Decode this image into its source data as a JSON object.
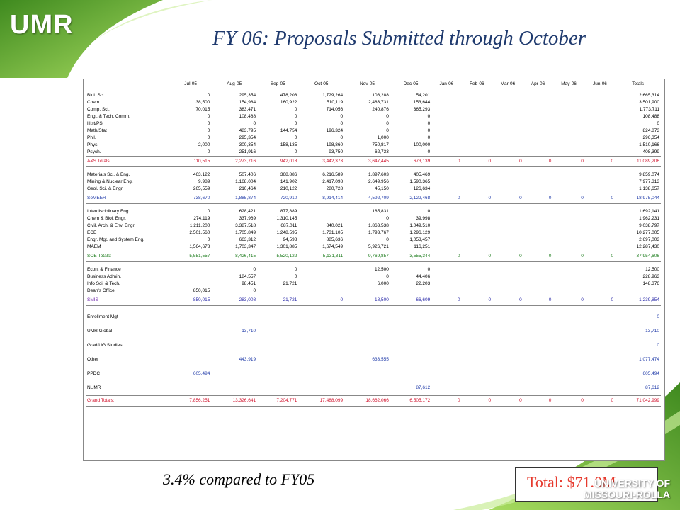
{
  "header": {
    "logo": "UMR",
    "title": "FY 06: Proposals Submitted through October"
  },
  "table": {
    "columns": [
      "",
      "Jul-05",
      "Aug-05",
      "Sep-05",
      "Oct-05",
      "Nov-05",
      "Dec-05",
      "Jan-06",
      "Feb-06",
      "Mar-06",
      "Apr-06",
      "May-06",
      "Jun-06",
      "Totals"
    ],
    "sections": [
      {
        "rows": [
          {
            "label": "Biol. Sci.",
            "values": [
              "0",
              "295,354",
              "478,208",
              "1,729,264",
              "108,288",
              "54,201",
              "",
              "",
              "",
              "",
              "",
              "",
              "2,665,314"
            ]
          },
          {
            "label": "Chem.",
            "values": [
              "38,500",
              "154,984",
              "160,922",
              "510,119",
              "2,483,731",
              "153,644",
              "",
              "",
              "",
              "",
              "",
              "",
              "3,501,900"
            ]
          },
          {
            "label": "Comp. Sci.",
            "values": [
              "70,015",
              "383,471",
              "0",
              "714,056",
              "240,876",
              "365,293",
              "",
              "",
              "",
              "",
              "",
              "",
              "1,773,711"
            ]
          },
          {
            "label": "Engl. & Tech. Comm.",
            "values": [
              "0",
              "108,488",
              "0",
              "0",
              "0",
              "0",
              "",
              "",
              "",
              "",
              "",
              "",
              "108,488"
            ]
          },
          {
            "label": "Hist/PS",
            "values": [
              "0",
              "0",
              "0",
              "0",
              "0",
              "0",
              "",
              "",
              "",
              "",
              "",
              "",
              "0"
            ]
          },
          {
            "label": "Math/Stat",
            "values": [
              "0",
              "483,795",
              "144,754",
              "196,324",
              "0",
              "0",
              "",
              "",
              "",
              "",
              "",
              "",
              "824,873"
            ]
          },
          {
            "label": "Phil.",
            "values": [
              "0",
              "295,354",
              "0",
              "0",
              "1,000",
              "0",
              "",
              "",
              "",
              "",
              "",
              "",
              "296,354"
            ]
          },
          {
            "label": "Phys.",
            "values": [
              "2,000",
              "300,354",
              "158,135",
              "198,860",
              "750,817",
              "100,000",
              "",
              "",
              "",
              "",
              "",
              "",
              "1,510,166"
            ]
          },
          {
            "label": "Psych.",
            "values": [
              "0",
              "251,916",
              "0",
              "93,750",
              "62,733",
              "0",
              "",
              "",
              "",
              "",
              "",
              "",
              "408,399"
            ]
          }
        ],
        "total": {
          "label": "A&S Totals:",
          "values": [
            "110,515",
            "2,273,716",
            "942,018",
            "3,442,373",
            "3,647,445",
            "673,139",
            "0",
            "0",
            "0",
            "0",
            "0",
            "0",
            "11,089,206"
          ]
        }
      },
      {
        "rows": [
          {
            "label": "Materials Sci. & Eng.",
            "values": [
              "463,122",
              "507,406",
              "368,886",
              "6,216,589",
              "1,897,603",
              "405,469",
              "",
              "",
              "",
              "",
              "",
              "",
              "9,859,074"
            ]
          },
          {
            "label": "Mining & Nuclear Eng.",
            "values": [
              "9,989",
              "1,168,004",
              "141,902",
              "2,417,098",
              "2,649,956",
              "1,590,365",
              "",
              "",
              "",
              "",
              "",
              "",
              "7,977,313"
            ]
          },
          {
            "label": "Geol. Sci. & Engr.",
            "values": [
              "265,559",
              "210,464",
              "210,122",
              "280,728",
              "45,150",
              "126,634",
              "",
              "",
              "",
              "",
              "",
              "",
              "1,138,657"
            ]
          }
        ],
        "total": {
          "label": "SoMEER",
          "values": [
            "738,670",
            "1,885,874",
            "720,910",
            "8,914,414",
            "4,592,709",
            "2,122,468",
            "0",
            "0",
            "0",
            "0",
            "0",
            "0",
            "18,975,044"
          ]
        }
      },
      {
        "rows": [
          {
            "label": "Interdisciplinary Eng",
            "values": [
              "0",
              "628,421",
              "877,889",
              "",
              "185,831",
              "0",
              "",
              "",
              "",
              "",
              "",
              "",
              "1,692,141"
            ]
          },
          {
            "label": "Chem & Biol. Engr.",
            "values": [
              "274,119",
              "337,969",
              "1,310,145",
              "",
              "0",
              "39,998",
              "",
              "",
              "",
              "",
              "",
              "",
              "1,962,231"
            ]
          },
          {
            "label": "Civil, Arch. & Env. Engr.",
            "values": [
              "1,211,200",
              "3,387,518",
              "687,011",
              "840,021",
              "1,863,538",
              "1,049,510",
              "",
              "",
              "",
              "",
              "",
              "",
              "9,038,797"
            ]
          },
          {
            "label": "ECE",
            "values": [
              "2,501,560",
              "1,705,849",
              "1,248,595",
              "1,731,105",
              "1,793,767",
              "1,296,129",
              "",
              "",
              "",
              "",
              "",
              "",
              "10,277,005"
            ]
          },
          {
            "label": "Engr. Mgt. and System Eng.",
            "values": [
              "0",
              "663,312",
              "94,598",
              "885,636",
              "0",
              "1,053,457",
              "",
              "",
              "",
              "",
              "",
              "",
              "2,697,003"
            ]
          },
          {
            "label": "MAEM",
            "values": [
              "1,564,678",
              "1,703,347",
              "1,301,885",
              "1,674,549",
              "5,926,721",
              "116,251",
              "",
              "",
              "",
              "",
              "",
              "",
              "12,287,430"
            ]
          }
        ],
        "total": {
          "label": "SOE Totals:",
          "values": [
            "5,551,557",
            "8,426,415",
            "5,520,122",
            "5,131,311",
            "9,769,857",
            "3,555,344",
            "0",
            "0",
            "0",
            "0",
            "0",
            "0",
            "37,954,606"
          ]
        }
      },
      {
        "rows": [
          {
            "label": "Econ. & Finance",
            "values": [
              "",
              "0",
              "0",
              "",
              "12,500",
              "0",
              "",
              "",
              "",
              "",
              "",
              "",
              "12,500"
            ]
          },
          {
            "label": "Business Admin.",
            "values": [
              "",
              "184,557",
              "0",
              "",
              "0",
              "44,406",
              "",
              "",
              "",
              "",
              "",
              "",
              "228,963"
            ]
          },
          {
            "label": "Info Sci. & Tech.",
            "values": [
              "",
              "98,451",
              "21,721",
              "",
              "6,000",
              "22,203",
              "",
              "",
              "",
              "",
              "",
              "",
              "148,376"
            ]
          },
          {
            "label": "Dean's Office",
            "values": [
              "850,015",
              "0",
              "",
              "",
              "",
              "",
              "",
              "",
              "",
              "",
              "",
              "",
              ""
            ]
          }
        ],
        "total": {
          "label": "SMIS",
          "values": [
            "850,015",
            "283,008",
            "21,721",
            "0",
            "18,500",
            "66,609",
            "0",
            "0",
            "0",
            "0",
            "0",
            "0",
            "1,239,854"
          ]
        }
      }
    ],
    "other_rows": [
      {
        "label": "Enrollment Mgt",
        "values": [
          "",
          "",
          "",
          "",
          "",
          "",
          "",
          "",
          "",
          "",
          "",
          "",
          "0"
        ]
      },
      {
        "label": "UMR Global",
        "values": [
          "",
          "13,710",
          "",
          "",
          "",
          "",
          "",
          "",
          "",
          "",
          "",
          "",
          "13,710"
        ]
      },
      {
        "label": "Grad/UG Studies",
        "values": [
          "",
          "",
          "",
          "",
          "",
          "",
          "",
          "",
          "",
          "",
          "",
          "",
          "0"
        ]
      },
      {
        "label": "Other",
        "values": [
          "",
          "443,919",
          "",
          "",
          "633,555",
          "",
          "",
          "",
          "",
          "",
          "",
          "",
          "1,077,474"
        ]
      },
      {
        "label": "PPDC",
        "values": [
          "605,494",
          "",
          "",
          "",
          "",
          "",
          "",
          "",
          "",
          "",
          "",
          "",
          "605,494"
        ]
      },
      {
        "label": "NUMR",
        "values": [
          "",
          "",
          "",
          "",
          "",
          "87,612",
          "",
          "",
          "",
          "",
          "",
          "",
          "87,612"
        ]
      }
    ],
    "grand_total": {
      "label": "Grand Totals:",
      "values": [
        "7,856,251",
        "13,326,641",
        "7,204,771",
        "17,488,099",
        "18,662,066",
        "6,505,172",
        "0",
        "0",
        "0",
        "0",
        "0",
        "0",
        "71,042,999"
      ]
    }
  },
  "footer": {
    "note": "3.4% compared to FY05",
    "total_label": "Total:  $71.0M",
    "univ_line1": "UNIVERSITY OF",
    "univ_line2": "MISSOURI-ROLLA"
  },
  "colors": {
    "title": "#1f3a6e",
    "total_red": "#e63a2e",
    "green_dark": "#3f8a1f",
    "green_light": "#9fd45a"
  }
}
